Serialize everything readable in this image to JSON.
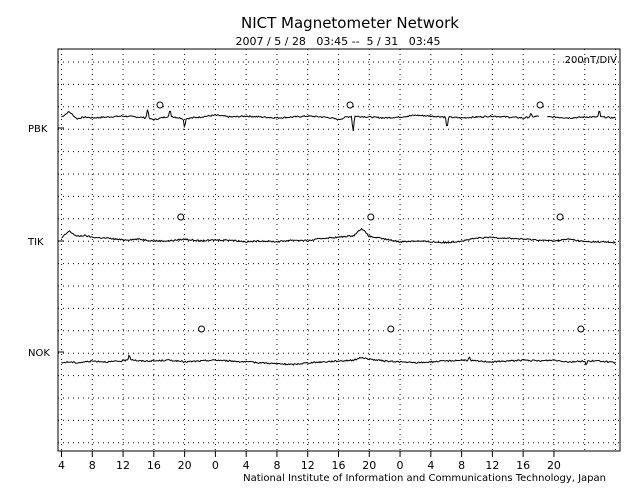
{
  "chart_data": {
    "type": "line",
    "title": "NICT Magnetometer Network",
    "subtitle": "2007 / 5 / 28   03:45 --  5 / 31   03:45",
    "scale_label": "200nT/DIV",
    "credit": "National Institute of Information and Communications Technology, Japan",
    "x_tick_labels": [
      "4",
      "8",
      "12",
      "16",
      "20",
      "0",
      "4",
      "8",
      "12",
      "16",
      "20",
      "0",
      "4",
      "8",
      "12",
      "16",
      "20"
    ],
    "x_unit": "hours (UT), 72 h span",
    "grid": true,
    "series": [
      {
        "name": "PBK",
        "marker_hours": [
          12.8,
          37.5,
          62.2
        ],
        "hours": [
          0,
          1,
          2,
          3,
          4,
          6,
          8,
          10,
          11,
          12,
          14,
          16,
          18,
          20,
          22,
          24,
          26,
          28,
          30,
          32,
          34,
          35,
          36,
          37,
          38,
          40,
          42,
          44,
          46,
          48,
          50,
          52,
          54,
          56,
          58,
          60,
          61,
          62,
          63,
          64,
          66,
          68,
          70,
          72
        ],
        "values": [
          0,
          6,
          -2,
          0,
          -1,
          0,
          1,
          0,
          -1,
          -3,
          1,
          -2,
          0,
          2,
          0,
          1,
          0,
          -1,
          0,
          1,
          0,
          -1,
          -3,
          0,
          1,
          0,
          -1,
          0,
          2,
          1,
          0,
          -1,
          0,
          1,
          0,
          -1,
          0,
          1,
          0,
          0,
          -1,
          0,
          0,
          -1
        ],
        "gaps": [
          [
            62.1,
            63.0
          ]
        ],
        "spikes": [
          [
            11.2,
            12
          ],
          [
            14.1,
            7
          ],
          [
            16.0,
            -10
          ],
          [
            37.9,
            -18
          ],
          [
            50.1,
            -14
          ],
          [
            61.0,
            4
          ],
          [
            69.9,
            8
          ]
        ]
      },
      {
        "name": "TIK",
        "marker_hours": [
          15.5,
          40.2,
          64.8
        ],
        "hours": [
          0,
          0.5,
          1,
          2,
          3,
          4,
          6,
          8,
          10,
          12,
          14,
          16,
          18,
          20,
          22,
          24,
          26,
          28,
          30,
          32,
          34,
          36,
          38,
          39,
          40,
          42,
          44,
          46,
          48,
          50,
          52,
          54,
          56,
          58,
          60,
          62,
          64,
          66,
          68,
          70,
          72
        ],
        "values": [
          2,
          6,
          10,
          4,
          5,
          3,
          2,
          0,
          1,
          -1,
          -1,
          1,
          -1,
          0,
          0,
          -2,
          -1,
          -2,
          0,
          -1,
          2,
          3,
          5,
          13,
          4,
          1,
          -2,
          -1,
          -2,
          -3,
          -1,
          2,
          3,
          2,
          1,
          0,
          -1,
          1,
          -2,
          -2,
          -3
        ],
        "gaps": [],
        "spikes": []
      },
      {
        "name": "NOK",
        "marker_hours": [
          18.2,
          42.8,
          67.5
        ],
        "hours": [
          0,
          1,
          2,
          3,
          4,
          6,
          8,
          9,
          10,
          12,
          14,
          16,
          18,
          20,
          22,
          24,
          26,
          28,
          30,
          32,
          34,
          36,
          38,
          39,
          40,
          42,
          44,
          46,
          48,
          50,
          52,
          54,
          56,
          58,
          60,
          62,
          64,
          66,
          68,
          70,
          72
        ],
        "values": [
          -2,
          -1,
          -2,
          -1,
          0,
          -1,
          0,
          2,
          0,
          0,
          1,
          -1,
          0,
          1,
          0,
          -1,
          -2,
          -3,
          -4,
          -2,
          -1,
          0,
          1,
          4,
          2,
          0,
          -1,
          -2,
          -1,
          0,
          1,
          0,
          -1,
          0,
          1,
          0,
          1,
          -1,
          0,
          0,
          -2
        ],
        "gaps": [],
        "spikes": [
          [
            8.8,
            6
          ],
          [
            53.0,
            4
          ],
          [
            68.2,
            -5
          ]
        ]
      }
    ]
  }
}
